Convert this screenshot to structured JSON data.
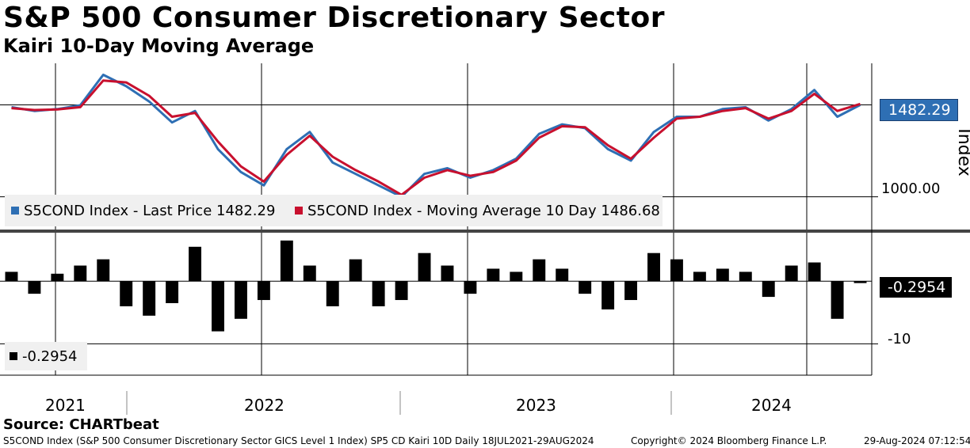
{
  "header": {
    "title": "S&P 500 Consumer Discretionary Sector",
    "subtitle": "Kairi 10-Day Moving Average"
  },
  "colors": {
    "price": "#2e6fb4",
    "moving_average": "#c8102e",
    "kairi": "#000000",
    "grid": "#cccccc"
  },
  "chart_data": [
    {
      "type": "line",
      "title": "S5COND Index",
      "ylabel": "Index",
      "ylim": [
        820,
        1700
      ],
      "yticks": [
        1000
      ],
      "ytick_labels": [
        "1000.00"
      ],
      "x": [
        "2021-07",
        "2021-08",
        "2021-09",
        "2021-10",
        "2021-11",
        "2021-12",
        "2022-01",
        "2022-02",
        "2022-03",
        "2022-04",
        "2022-05",
        "2022-06",
        "2022-07",
        "2022-08",
        "2022-09",
        "2022-10",
        "2022-11",
        "2022-12",
        "2023-01",
        "2023-02",
        "2023-03",
        "2023-04",
        "2023-05",
        "2023-06",
        "2023-07",
        "2023-08",
        "2023-09",
        "2023-10",
        "2023-11",
        "2023-12",
        "2024-01",
        "2024-02",
        "2024-03",
        "2024-04",
        "2024-05",
        "2024-06",
        "2024-07",
        "2024-08"
      ],
      "series": [
        {
          "name": "S5COND Index - Last Price",
          "last_value": "1482.29",
          "legend": "S5COND Index - Last Price 1482.29",
          "values": [
            1470,
            1450,
            1460,
            1480,
            1640,
            1580,
            1500,
            1390,
            1450,
            1250,
            1130,
            1060,
            1250,
            1340,
            1180,
            1120,
            1060,
            1000,
            1120,
            1150,
            1100,
            1140,
            1200,
            1330,
            1380,
            1360,
            1250,
            1190,
            1340,
            1420,
            1420,
            1460,
            1470,
            1400,
            1460,
            1560,
            1420,
            1482
          ]
        },
        {
          "name": "S5COND Index - Moving Average 10 Day",
          "last_value": "1486.68",
          "legend": "S5COND Index - Moving Average 10 Day 1486.68",
          "values": [
            1465,
            1455,
            1458,
            1470,
            1610,
            1600,
            1530,
            1420,
            1440,
            1290,
            1160,
            1080,
            1220,
            1320,
            1210,
            1140,
            1080,
            1010,
            1100,
            1140,
            1110,
            1130,
            1190,
            1310,
            1370,
            1365,
            1270,
            1200,
            1310,
            1410,
            1420,
            1450,
            1465,
            1410,
            1450,
            1540,
            1450,
            1487
          ]
        }
      ]
    },
    {
      "type": "bar",
      "title": "Kairi 10D",
      "ylim": [
        -15,
        8
      ],
      "yticks": [
        -10
      ],
      "ytick_labels": [
        "-10"
      ],
      "last_value": "-0.2954",
      "legend": "-0.2954",
      "x": [
        "2021-07",
        "2021-08",
        "2021-09",
        "2021-10",
        "2021-11",
        "2021-12",
        "2022-01",
        "2022-02",
        "2022-03",
        "2022-04",
        "2022-05",
        "2022-06",
        "2022-07",
        "2022-08",
        "2022-09",
        "2022-10",
        "2022-11",
        "2022-12",
        "2023-01",
        "2023-02",
        "2023-03",
        "2023-04",
        "2023-05",
        "2023-06",
        "2023-07",
        "2023-08",
        "2023-09",
        "2023-10",
        "2023-11",
        "2023-12",
        "2024-01",
        "2024-02",
        "2024-03",
        "2024-04",
        "2024-05",
        "2024-06",
        "2024-07",
        "2024-08"
      ],
      "values": [
        1.5,
        -2,
        1.2,
        2.5,
        3.5,
        -4,
        -5.5,
        -3.5,
        5.5,
        -8,
        -6,
        -3,
        6.5,
        2.5,
        -4,
        3.5,
        -4,
        -3,
        4.5,
        2.5,
        -2,
        2,
        1.5,
        3.5,
        2,
        -2,
        -4.5,
        -3,
        4.5,
        3.5,
        1.5,
        2,
        1.5,
        -2.5,
        2.5,
        3,
        -6,
        -0.2954
      ]
    }
  ],
  "x_axis": {
    "years": [
      "2021",
      "2022",
      "2023",
      "2024"
    ]
  },
  "footer": {
    "source": "Source: CHARTbeat",
    "description": "S5COND Index (S&P 500 Consumer Discretionary Sector GICS Level 1 Index) SP5 CD Kairi 10D  Daily 18JUL2021-29AUG2024",
    "copyright": "Copyright© 2024 Bloomberg Finance L.P.",
    "timestamp": "29-Aug-2024 07:12:54"
  }
}
